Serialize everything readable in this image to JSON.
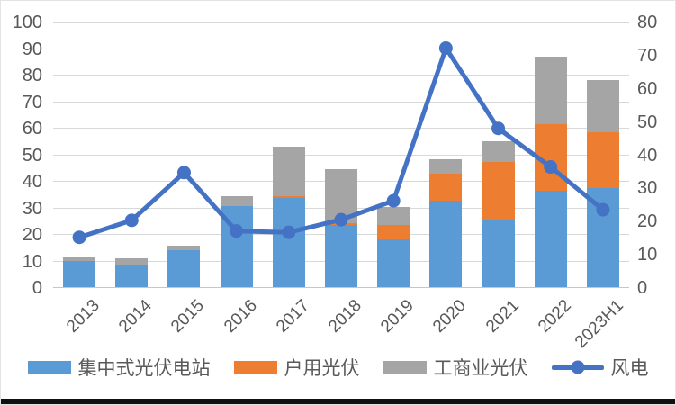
{
  "chart_data": {
    "type": "bar",
    "subtype": "stacked-bar-with-line",
    "title": "",
    "categories": [
      "2013",
      "2014",
      "2015",
      "2016",
      "2017",
      "2018",
      "2019",
      "2020",
      "2021",
      "2022",
      "2023H1"
    ],
    "series": [
      {
        "name": "集中式光伏电站",
        "key": "utility-pv",
        "render": "bar",
        "axis": "left",
        "color": "#5B9BD5",
        "values": [
          10.0,
          8.5,
          13.9,
          30.6,
          33.5,
          23.4,
          17.9,
          32.7,
          25.3,
          36.3,
          37.4
        ]
      },
      {
        "name": "户用光伏",
        "key": "household-pv",
        "render": "bar",
        "axis": "left",
        "color": "#ED7D31",
        "values": [
          0,
          0,
          0,
          0,
          0.7,
          0.6,
          5.4,
          10.1,
          21.8,
          25.2,
          21.0
        ]
      },
      {
        "name": "工商业光伏",
        "key": "ci-pv",
        "render": "bar",
        "axis": "left",
        "color": "#A5A5A5",
        "values": [
          1.2,
          2.2,
          1.6,
          3.7,
          18.6,
          20.3,
          6.8,
          5.4,
          7.7,
          25.4,
          19.6
        ]
      },
      {
        "name": "风电",
        "key": "wind",
        "render": "line",
        "axis": "right",
        "color": "#4472C4",
        "values": [
          15.0,
          20.1,
          34.5,
          16.9,
          16.5,
          20.3,
          26.0,
          72.0,
          47.8,
          36.2,
          23.3
        ]
      }
    ],
    "left_axis": {
      "min": 0,
      "max": 100,
      "step": 10,
      "ticks": [
        "100",
        "90",
        "80",
        "70",
        "60",
        "50",
        "40",
        "30",
        "20",
        "10",
        "0"
      ]
    },
    "right_axis": {
      "min": 0,
      "max": 80,
      "step": 10,
      "ticks": [
        "80",
        "70",
        "60",
        "50",
        "40",
        "30",
        "20",
        "10",
        "0"
      ]
    },
    "grid": "horizontal",
    "legend_position": "bottom",
    "xlabel": "",
    "ylabel": ""
  },
  "colors": {
    "grid": "#d9d9d9",
    "axis_text": "#595959",
    "background": "#ffffff",
    "bottom_strip": "#101010"
  }
}
